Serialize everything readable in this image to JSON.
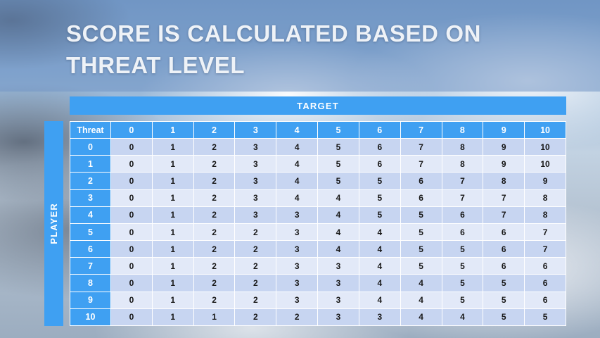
{
  "slide": {
    "title_line1": "SCORE IS CALCULATED BASED ON",
    "title_line2": "THREAT LEVEL"
  },
  "table": {
    "target_label": "TARGET",
    "player_label": "PLAYER",
    "corner_label": "Threat",
    "column_headers": [
      "0",
      "1",
      "2",
      "3",
      "4",
      "5",
      "6",
      "7",
      "8",
      "9",
      "10"
    ],
    "rows": [
      {
        "threat": "0",
        "values": [
          0,
          1,
          2,
          3,
          4,
          5,
          6,
          7,
          8,
          9,
          10
        ]
      },
      {
        "threat": "1",
        "values": [
          0,
          1,
          2,
          3,
          4,
          5,
          6,
          7,
          8,
          9,
          10
        ]
      },
      {
        "threat": "2",
        "values": [
          0,
          1,
          2,
          3,
          4,
          5,
          5,
          6,
          7,
          8,
          9
        ]
      },
      {
        "threat": "3",
        "values": [
          0,
          1,
          2,
          3,
          4,
          4,
          5,
          6,
          7,
          7,
          8
        ]
      },
      {
        "threat": "4",
        "values": [
          0,
          1,
          2,
          3,
          3,
          4,
          5,
          5,
          6,
          7,
          8
        ]
      },
      {
        "threat": "5",
        "values": [
          0,
          1,
          2,
          2,
          3,
          4,
          4,
          5,
          6,
          6,
          7
        ]
      },
      {
        "threat": "6",
        "values": [
          0,
          1,
          2,
          2,
          3,
          4,
          4,
          5,
          5,
          6,
          7
        ]
      },
      {
        "threat": "7",
        "values": [
          0,
          1,
          2,
          2,
          3,
          3,
          4,
          5,
          5,
          6,
          6
        ]
      },
      {
        "threat": "8",
        "values": [
          0,
          1,
          2,
          2,
          3,
          3,
          4,
          4,
          5,
          5,
          6
        ]
      },
      {
        "threat": "9",
        "values": [
          0,
          1,
          2,
          2,
          3,
          3,
          4,
          4,
          5,
          5,
          6
        ]
      },
      {
        "threat": "10",
        "values": [
          0,
          1,
          1,
          2,
          2,
          3,
          3,
          4,
          4,
          5,
          5
        ]
      }
    ]
  },
  "colors": {
    "accent_blue": "#3fa0f2",
    "band_dark": "#c7d5f1",
    "band_light": "#e2e9f8"
  }
}
